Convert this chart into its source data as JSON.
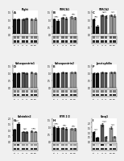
{
  "panels": [
    {
      "title": "Right",
      "col": 0,
      "row": 0,
      "bar_values": [
        1.0,
        1.0,
        1.02,
        1.05,
        1.0,
        1.03
      ],
      "bar_errors": [
        0.05,
        0.06,
        0.05,
        0.06,
        0.05,
        0.06
      ],
      "bar_colors": [
        "#111111",
        "#111111",
        "#555555",
        "#555555",
        "#999999",
        "#999999"
      ],
      "ylim": [
        0,
        1.6
      ],
      "yticks": [
        0,
        0.5,
        1.0,
        1.5
      ],
      "significance": []
    },
    {
      "title": "SERCA1",
      "col": 1,
      "row": 0,
      "bar_values": [
        1.0,
        0.92,
        1.12,
        1.08,
        1.15,
        1.1
      ],
      "bar_errors": [
        0.06,
        0.07,
        0.06,
        0.07,
        0.07,
        0.07
      ],
      "bar_colors": [
        "#111111",
        "#111111",
        "#555555",
        "#555555",
        "#999999",
        "#999999"
      ],
      "ylim": [
        0,
        1.6
      ],
      "yticks": [
        0,
        0.5,
        1.0,
        1.5
      ],
      "significance": [
        "ns",
        "ns",
        "ns"
      ]
    },
    {
      "title": "SERCA2",
      "col": 2,
      "row": 0,
      "bar_values": [
        1.0,
        0.52,
        1.28,
        1.22,
        1.28,
        1.25
      ],
      "bar_errors": [
        0.07,
        0.08,
        0.07,
        0.08,
        0.08,
        0.08
      ],
      "bar_colors": [
        "#111111",
        "#111111",
        "#555555",
        "#555555",
        "#999999",
        "#999999"
      ],
      "ylim": [
        0,
        1.6
      ],
      "yticks": [
        0,
        0.5,
        1.0,
        1.5
      ],
      "significance": [
        "ns",
        "ns",
        "*"
      ]
    },
    {
      "title": "Calsequestrin1",
      "col": 0,
      "row": 1,
      "bar_values": [
        1.0,
        0.98,
        1.02,
        1.0,
        1.03,
        1.0
      ],
      "bar_errors": [
        0.05,
        0.05,
        0.05,
        0.05,
        0.05,
        0.05
      ],
      "bar_colors": [
        "#111111",
        "#111111",
        "#555555",
        "#555555",
        "#999999",
        "#999999"
      ],
      "ylim": [
        0,
        1.6
      ],
      "yticks": [
        0,
        0.5,
        1.0,
        1.5
      ],
      "significance": []
    },
    {
      "title": "Calsequestrin2",
      "col": 1,
      "row": 1,
      "bar_values": [
        1.0,
        0.98,
        1.04,
        1.02,
        1.06,
        1.04
      ],
      "bar_errors": [
        0.05,
        0.05,
        0.05,
        0.05,
        0.05,
        0.05
      ],
      "bar_colors": [
        "#111111",
        "#111111",
        "#555555",
        "#555555",
        "#999999",
        "#999999"
      ],
      "ylim": [
        0,
        1.6
      ],
      "yticks": [
        0,
        0.5,
        1.0,
        1.5
      ],
      "significance": []
    },
    {
      "title": "Junctophilin",
      "col": 2,
      "row": 1,
      "bar_values": [
        1.0,
        1.0,
        1.04,
        1.02,
        1.06,
        1.04
      ],
      "bar_errors": [
        0.05,
        0.05,
        0.05,
        0.05,
        0.05,
        0.05
      ],
      "bar_colors": [
        "#111111",
        "#111111",
        "#555555",
        "#555555",
        "#999999",
        "#999999"
      ],
      "ylim": [
        0,
        1.6
      ],
      "yticks": [
        0,
        0.5,
        1.0,
        1.5
      ],
      "significance": []
    },
    {
      "title": "Calstabin2",
      "col": 0,
      "row": 2,
      "bar_values": [
        1.0,
        1.52,
        0.84,
        0.82,
        0.87,
        0.84
      ],
      "bar_errors": [
        0.07,
        0.12,
        0.06,
        0.06,
        0.07,
        0.06
      ],
      "bar_colors": [
        "#111111",
        "#111111",
        "#555555",
        "#555555",
        "#999999",
        "#999999"
      ],
      "ylim": [
        0,
        2.0
      ],
      "yticks": [
        0,
        0.5,
        1.0,
        1.5,
        2.0
      ],
      "significance": [
        "*",
        "ns",
        "ns"
      ]
    },
    {
      "title": "RYR 1/2",
      "col": 1,
      "row": 2,
      "bar_values": [
        1.0,
        0.94,
        0.91,
        0.89,
        0.87,
        0.84
      ],
      "bar_errors": [
        0.06,
        0.07,
        0.06,
        0.06,
        0.06,
        0.06
      ],
      "bar_colors": [
        "#111111",
        "#111111",
        "#555555",
        "#555555",
        "#999999",
        "#999999"
      ],
      "ylim": [
        0,
        1.6
      ],
      "yticks": [
        0,
        0.5,
        1.0,
        1.5
      ],
      "significance": [
        "ns",
        "ns",
        "ns"
      ]
    },
    {
      "title": "Casq1",
      "col": 2,
      "row": 2,
      "bar_values": [
        1.0,
        0.42,
        1.78,
        0.52,
        1.48,
        0.48
      ],
      "bar_errors": [
        0.08,
        0.1,
        0.15,
        0.1,
        0.14,
        0.09
      ],
      "bar_colors": [
        "#111111",
        "#111111",
        "#555555",
        "#555555",
        "#999999",
        "#999999"
      ],
      "ylim": [
        0,
        2.5
      ],
      "yticks": [
        0,
        0.5,
        1.0,
        1.5,
        2.0
      ],
      "significance": [
        "*",
        "*",
        "*"
      ]
    }
  ],
  "blot_bg": "#cccccc",
  "figure_bg": "#f0f0f0",
  "panel_letters": [
    "A",
    "B",
    "C",
    "D",
    "E",
    "F",
    "G",
    "H",
    "I"
  ]
}
